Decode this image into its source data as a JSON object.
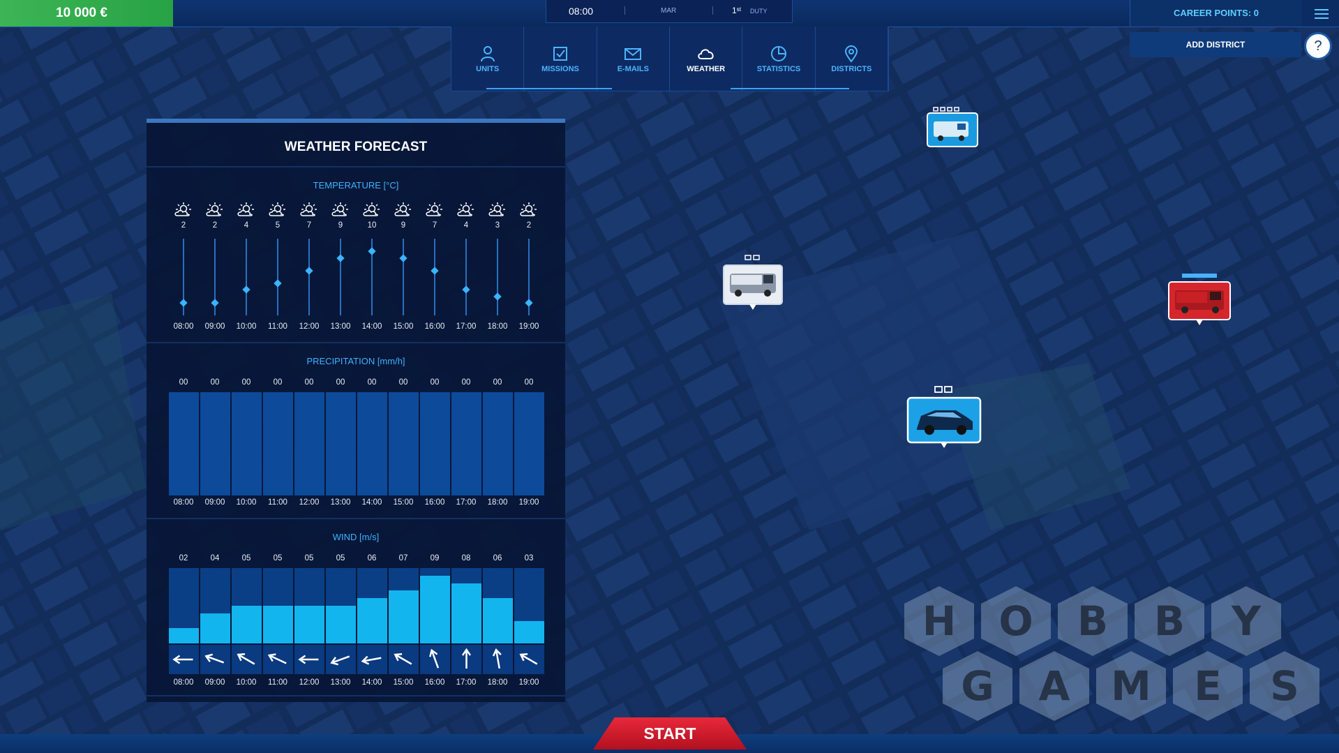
{
  "topbar": {
    "money": "10 000 €",
    "time": "08:00",
    "month": "MAR",
    "day": "1ˢᵗ",
    "shift": "DUTY",
    "career_points": "CAREER POINTS: 0",
    "add_district": "ADD DISTRICT",
    "help": "?"
  },
  "tabs": [
    {
      "label": "UNITS",
      "icon": "person-icon"
    },
    {
      "label": "MISSIONS",
      "icon": "checkbox-icon"
    },
    {
      "label": "E-MAILS",
      "icon": "envelope-icon"
    },
    {
      "label": "WEATHER",
      "icon": "cloud-icon",
      "active": true
    },
    {
      "label": "STATISTICS",
      "icon": "pie-chart-icon"
    },
    {
      "label": "DISTRICTS",
      "icon": "location-pin-icon"
    }
  ],
  "weather": {
    "title": "WEATHER FORECAST",
    "temperature_title": "TEMPERATURE [°C]",
    "precipitation_title": "PRECIPITATION [mm/h]",
    "wind_title": "WIND [m/s]",
    "hours": [
      "08:00",
      "09:00",
      "10:00",
      "11:00",
      "12:00",
      "13:00",
      "14:00",
      "15:00",
      "16:00",
      "17:00",
      "18:00",
      "19:00"
    ],
    "temperature": [
      2,
      2,
      4,
      5,
      7,
      9,
      10,
      9,
      7,
      4,
      3,
      2
    ],
    "temperature_labels": [
      "2",
      "2",
      "4",
      "5",
      "7",
      "9",
      "10",
      "9",
      "7",
      "4",
      "3",
      "2"
    ],
    "precipitation_labels": [
      "00",
      "00",
      "00",
      "00",
      "00",
      "00",
      "00",
      "00",
      "00",
      "00",
      "00",
      "00"
    ],
    "wind": [
      2,
      4,
      5,
      5,
      5,
      5,
      6,
      7,
      9,
      8,
      6,
      3
    ],
    "wind_labels": [
      "02",
      "04",
      "05",
      "05",
      "05",
      "05",
      "06",
      "07",
      "09",
      "08",
      "06",
      "03"
    ],
    "wind_direction_deg": [
      270,
      290,
      300,
      295,
      270,
      250,
      260,
      300,
      340,
      0,
      350,
      300
    ],
    "weather_icon": "sun-behind-cloud-icon"
  },
  "start": "START",
  "watermark": {
    "line1": [
      "H",
      "O",
      "B",
      "B",
      "Y"
    ],
    "line2": [
      "G",
      "A",
      "M",
      "E",
      "S"
    ]
  },
  "colors": {
    "money_bg": "#3db556",
    "accent": "#3fb2ff",
    "start_bg": "#d21f31",
    "wind_bar": "#13b5ef"
  }
}
